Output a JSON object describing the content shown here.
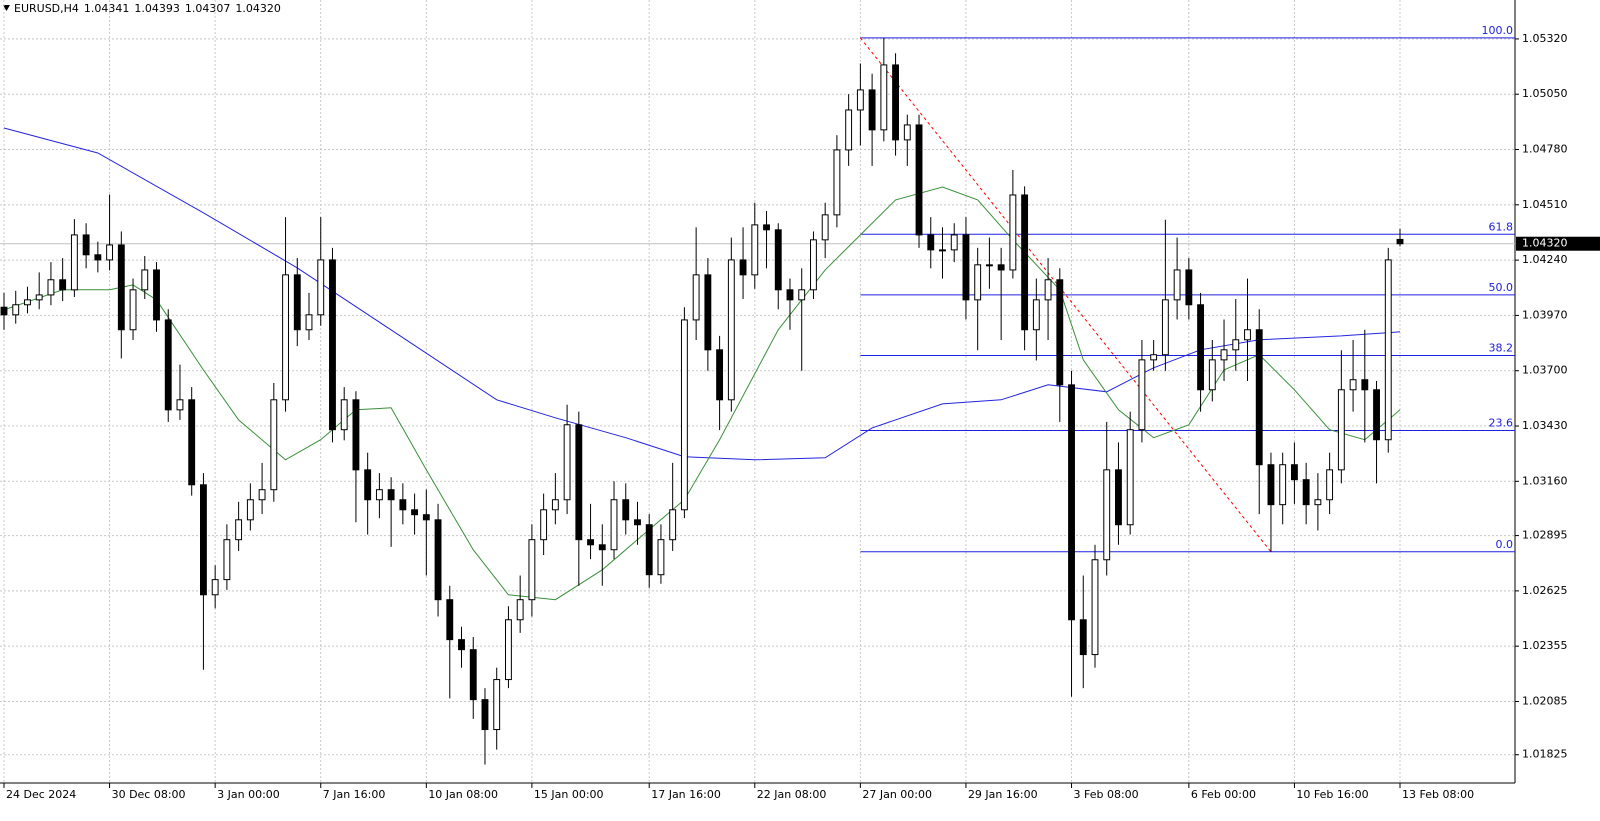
{
  "header": {
    "symbol": "EURUSD,H4",
    "ohlc": [
      "1.04341",
      "1.04393",
      "1.04307",
      "1.04320"
    ]
  },
  "chart_data": {
    "type": "candlestick",
    "bull_color": "#ffffff",
    "bear_color": "#000000",
    "outline_color": "#000000",
    "grid": true,
    "grid_color": "#c8c8c8",
    "ylim": [
      1.01687,
      1.0551
    ],
    "yticks": [
      {
        "value": 1.0532,
        "label": "1.05320"
      },
      {
        "value": 1.0505,
        "label": "1.05050"
      },
      {
        "value": 1.0478,
        "label": "1.04780"
      },
      {
        "value": 1.0451,
        "label": "1.04510"
      },
      {
        "value": 1.0424,
        "label": "1.04240"
      },
      {
        "value": 1.0397,
        "label": "1.03970"
      },
      {
        "value": 1.037,
        "label": "1.03700"
      },
      {
        "value": 1.0343,
        "label": "1.03430"
      },
      {
        "value": 1.0316,
        "label": "1.03160"
      },
      {
        "value": 1.02895,
        "label": "1.02895"
      },
      {
        "value": 1.02625,
        "label": "1.02625"
      },
      {
        "value": 1.02355,
        "label": "1.02355"
      },
      {
        "value": 1.02085,
        "label": "1.02085"
      },
      {
        "value": 1.01825,
        "label": "1.01825"
      }
    ],
    "last_price": {
      "value": 1.0432,
      "label": "1.04320"
    },
    "categories": [
      "24 Dec 2024",
      null,
      null,
      null,
      null,
      null,
      null,
      null,
      null,
      "30 Dec 08:00",
      null,
      null,
      null,
      null,
      null,
      null,
      null,
      null,
      "3 Jan 00:00",
      null,
      null,
      null,
      null,
      null,
      null,
      null,
      null,
      "7 Jan 16:00",
      null,
      null,
      null,
      null,
      null,
      null,
      null,
      null,
      "10 Jan 08:00",
      null,
      null,
      null,
      null,
      null,
      null,
      null,
      null,
      "15 Jan 00:00",
      null,
      null,
      null,
      null,
      null,
      null,
      null,
      null,
      null,
      "17 Jan 16:00",
      null,
      null,
      null,
      null,
      null,
      null,
      null,
      null,
      "22 Jan 08:00",
      null,
      null,
      null,
      null,
      null,
      null,
      null,
      null,
      "27 Jan 00:00",
      null,
      null,
      null,
      null,
      null,
      null,
      null,
      null,
      "29 Jan 16:00",
      null,
      null,
      null,
      null,
      null,
      null,
      null,
      null,
      "3 Feb 08:00",
      null,
      null,
      null,
      null,
      null,
      null,
      null,
      null,
      null,
      "6 Feb 00:00",
      null,
      null,
      null,
      null,
      null,
      null,
      null,
      null,
      "10 Feb 16:00",
      null,
      null,
      null,
      null,
      null,
      null,
      null,
      null,
      "13 Feb 08:00"
    ],
    "open": [
      1.0401,
      1.03973,
      1.04022,
      1.04046,
      1.0407,
      1.04144,
      1.04095,
      1.04363,
      1.04266,
      1.04241,
      1.04314,
      1.039,
      1.04095,
      1.04192,
      1.03948,
      1.03509,
      1.03558,
      1.03143,
      1.02606,
      1.0268,
      1.02875,
      1.02972,
      1.0307,
      1.03119,
      1.03558,
      1.04168,
      1.039,
      1.03973,
      1.04241,
      1.03412,
      1.03558,
      1.03216,
      1.0307,
      1.03119,
      1.0307,
      1.03021,
      1.02997,
      1.02972,
      1.02582,
      1.02387,
      1.02338,
      1.02094,
      1.01948,
      1.02192,
      1.02484,
      1.02582,
      1.02875,
      1.03021,
      1.0307,
      1.03436,
      1.02875,
      1.0285,
      1.02826,
      1.0307,
      1.02972,
      1.02948,
      1.02704,
      1.02875,
      1.03021,
      1.03948,
      1.04168,
      1.03802,
      1.03558,
      1.04241,
      1.04168,
      1.04412,
      1.04388,
      1.04095,
      1.04046,
      1.04095,
      1.04339,
      1.04461,
      1.04778,
      1.04973,
      1.05071,
      1.04876,
      1.05193,
      1.04827,
      1.049,
      1.04363,
      1.0429,
      1.0429,
      1.04363,
      1.04046,
      1.04217,
      1.04217,
      1.04192,
      1.04558,
      1.039,
      1.04046,
      1.04144,
      1.03631,
      1.02484,
      1.02314,
      1.02777,
      1.03216,
      1.02948,
      1.03412,
      1.03753,
      1.03778,
      1.04046,
      1.04192,
      1.04022,
      1.03607,
      1.03753,
      1.03802,
      1.03851,
      1.039,
      1.03241,
      1.03046,
      1.03241,
      1.03168,
      1.03046,
      1.0307,
      1.03216,
      1.03607,
      1.03656,
      1.03607,
      1.03363,
      1.04341
    ],
    "high": [
      1.0408,
      1.0409,
      1.0411,
      1.0418,
      1.0423,
      1.0425,
      1.0444,
      1.0442,
      1.0433,
      1.0456,
      1.0438,
      1.0415,
      1.0426,
      1.0423,
      1.04,
      1.0373,
      1.0362,
      1.032,
      1.0275,
      1.0295,
      1.0306,
      1.0315,
      1.0325,
      1.0364,
      1.0445,
      1.0425,
      1.0408,
      1.0445,
      1.043,
      1.0362,
      1.036,
      1.033,
      1.032,
      1.0318,
      1.0315,
      1.031,
      1.0312,
      1.0305,
      1.0265,
      1.0245,
      1.024,
      1.0215,
      1.0225,
      1.0255,
      1.027,
      1.0295,
      1.031,
      1.032,
      1.03534,
      1.035,
      1.0305,
      1.0295,
      1.0316,
      1.0315,
      1.0306,
      1.03,
      1.0295,
      1.0325,
      1.0401,
      1.044,
      1.0425,
      1.0387,
      1.0435,
      1.044,
      1.0452,
      1.0448,
      1.0442,
      1.0415,
      1.042,
      1.0438,
      1.0452,
      1.0485,
      1.0505,
      1.052,
      1.0515,
      1.05325,
      1.0525,
      1.0495,
      1.0495,
      1.0445,
      1.044,
      1.0442,
      1.0445,
      1.043,
      1.0435,
      1.043,
      1.0468,
      1.046,
      1.0415,
      1.0425,
      1.042,
      1.037,
      1.027,
      1.0285,
      1.0345,
      1.0335,
      1.035,
      1.0385,
      1.0385,
      1.04437,
      1.0435,
      1.0425,
      1.0408,
      1.0385,
      1.0395,
      1.0405,
      1.0415,
      1.04,
      1.033,
      1.033,
      1.0335,
      1.0325,
      1.032,
      1.033,
      1.038,
      1.0385,
      1.039,
      1.0365,
      1.043,
      1.04393
    ],
    "low": [
      1.039,
      1.0393,
      1.0398,
      1.04,
      1.0402,
      1.0404,
      1.0406,
      1.042,
      1.0418,
      1.0419,
      1.0376,
      1.0385,
      1.0405,
      1.0389,
      1.0345,
      1.0346,
      1.0309,
      1.0224,
      1.0254,
      1.0263,
      1.0282,
      1.0292,
      1.03,
      1.0306,
      1.035,
      1.0382,
      1.0385,
      1.0392,
      1.0335,
      1.0336,
      1.0296,
      1.029,
      1.0298,
      1.0284,
      1.0295,
      1.029,
      1.027,
      1.025,
      1.021,
      1.0225,
      1.02,
      1.01777,
      1.0185,
      1.0215,
      1.0242,
      1.025,
      1.028,
      1.0295,
      1.03,
      1.0265,
      1.0278,
      1.0265,
      1.0278,
      1.029,
      1.0285,
      1.0264,
      1.0266,
      1.0282,
      1.0298,
      1.0385,
      1.037,
      1.0341,
      1.035,
      1.0405,
      1.041,
      1.042,
      1.04,
      1.039,
      1.037,
      1.0405,
      1.0425,
      1.044,
      1.047,
      1.048,
      1.047,
      1.0482,
      1.0475,
      1.047,
      1.043,
      1.042,
      1.0415,
      1.0423,
      1.0395,
      1.038,
      1.041,
      1.0385,
      1.0415,
      1.038,
      1.0375,
      1.0385,
      1.0345,
      1.02109,
      1.0215,
      1.0225,
      1.027,
      1.0285,
      1.029,
      1.0335,
      1.037,
      1.037,
      1.0395,
      1.0395,
      1.035,
      1.0355,
      1.0365,
      1.037,
      1.0365,
      1.03,
      1.02816,
      1.0295,
      1.0305,
      1.0295,
      1.0292,
      1.03,
      1.0315,
      1.035,
      1.0335,
      1.0315,
      1.033,
      1.04307
    ],
    "close": [
      1.03973,
      1.04022,
      1.04046,
      1.0407,
      1.04144,
      1.04095,
      1.04363,
      1.04266,
      1.04241,
      1.04314,
      1.039,
      1.04095,
      1.04192,
      1.03948,
      1.03509,
      1.03558,
      1.03143,
      1.02606,
      1.0268,
      1.02875,
      1.02972,
      1.0307,
      1.03119,
      1.03558,
      1.04168,
      1.039,
      1.03973,
      1.04241,
      1.03412,
      1.03558,
      1.03216,
      1.0307,
      1.03119,
      1.0307,
      1.03021,
      1.02997,
      1.02972,
      1.02582,
      1.02387,
      1.02338,
      1.02094,
      1.01948,
      1.02192,
      1.02484,
      1.02582,
      1.02875,
      1.03021,
      1.0307,
      1.03436,
      1.02875,
      1.0285,
      1.02826,
      1.0307,
      1.02972,
      1.02948,
      1.02704,
      1.02875,
      1.03021,
      1.03948,
      1.04168,
      1.03802,
      1.03558,
      1.04241,
      1.04168,
      1.04412,
      1.04388,
      1.04095,
      1.04046,
      1.04095,
      1.04339,
      1.04461,
      1.04778,
      1.04973,
      1.05071,
      1.04876,
      1.05193,
      1.04827,
      1.049,
      1.04363,
      1.0429,
      1.0429,
      1.04363,
      1.04046,
      1.04217,
      1.04217,
      1.04192,
      1.04558,
      1.039,
      1.04046,
      1.04144,
      1.03631,
      1.02484,
      1.02314,
      1.02777,
      1.03216,
      1.02948,
      1.03412,
      1.03753,
      1.03778,
      1.04046,
      1.04192,
      1.04022,
      1.03607,
      1.03753,
      1.03802,
      1.03851,
      1.039,
      1.03241,
      1.03046,
      1.03241,
      1.03168,
      1.03046,
      1.0307,
      1.03216,
      1.03607,
      1.03656,
      1.03607,
      1.03363,
      1.04241,
      1.0432
    ],
    "lines": [
      {
        "color": "#2424e0",
        "x": [
          0,
          8,
          17,
          25,
          34,
          42,
          47,
          53,
          58,
          64,
          70,
          74,
          80,
          85,
          89,
          94,
          98,
          102,
          107,
          114,
          119
        ],
        "values": [
          1.04885,
          1.04763,
          1.04471,
          1.04202,
          1.03861,
          1.03558,
          1.0347,
          1.03373,
          1.0328,
          1.03265,
          1.03275,
          1.03421,
          1.03538,
          1.03558,
          1.03631,
          1.03597,
          1.03714,
          1.03802,
          1.03851,
          1.0387,
          1.0389
        ]
      },
      {
        "color": "#3a8f3a",
        "x": [
          0,
          5,
          9,
          11,
          13,
          17,
          20,
          24,
          27,
          30,
          33,
          36,
          40,
          43,
          47,
          51,
          55,
          58,
          61,
          66,
          70,
          73,
          76,
          80,
          83,
          86,
          90,
          92,
          95,
          98,
          101,
          104,
          107,
          110,
          113,
          116,
          119
        ],
        "values": [
          1.03997,
          1.04095,
          1.04095,
          1.04119,
          1.04046,
          1.03704,
          1.0346,
          1.03265,
          1.03363,
          1.03509,
          1.03519,
          1.03216,
          1.02826,
          1.02606,
          1.02582,
          1.02728,
          1.02924,
          1.0307,
          1.03363,
          1.039,
          1.04192,
          1.04363,
          1.04534,
          1.04597,
          1.04534,
          1.04339,
          1.04095,
          1.03753,
          1.03509,
          1.03373,
          1.03436,
          1.03704,
          1.03778,
          1.03607,
          1.03412,
          1.03363,
          1.03509
        ]
      }
    ],
    "fibonacci": {
      "color": "#2020e0",
      "trend_color": "#ff0000",
      "from": 73,
      "to": 108,
      "levels": [
        {
          "value": 1.05325,
          "label": "100.0"
        },
        {
          "value": 1.04366,
          "label": "61.8"
        },
        {
          "value": 1.0407,
          "label": "50.0"
        },
        {
          "value": 1.03774,
          "label": "38.2"
        },
        {
          "value": 1.03408,
          "label": "23.6"
        },
        {
          "value": 1.02816,
          "label": "0.0"
        }
      ]
    }
  }
}
